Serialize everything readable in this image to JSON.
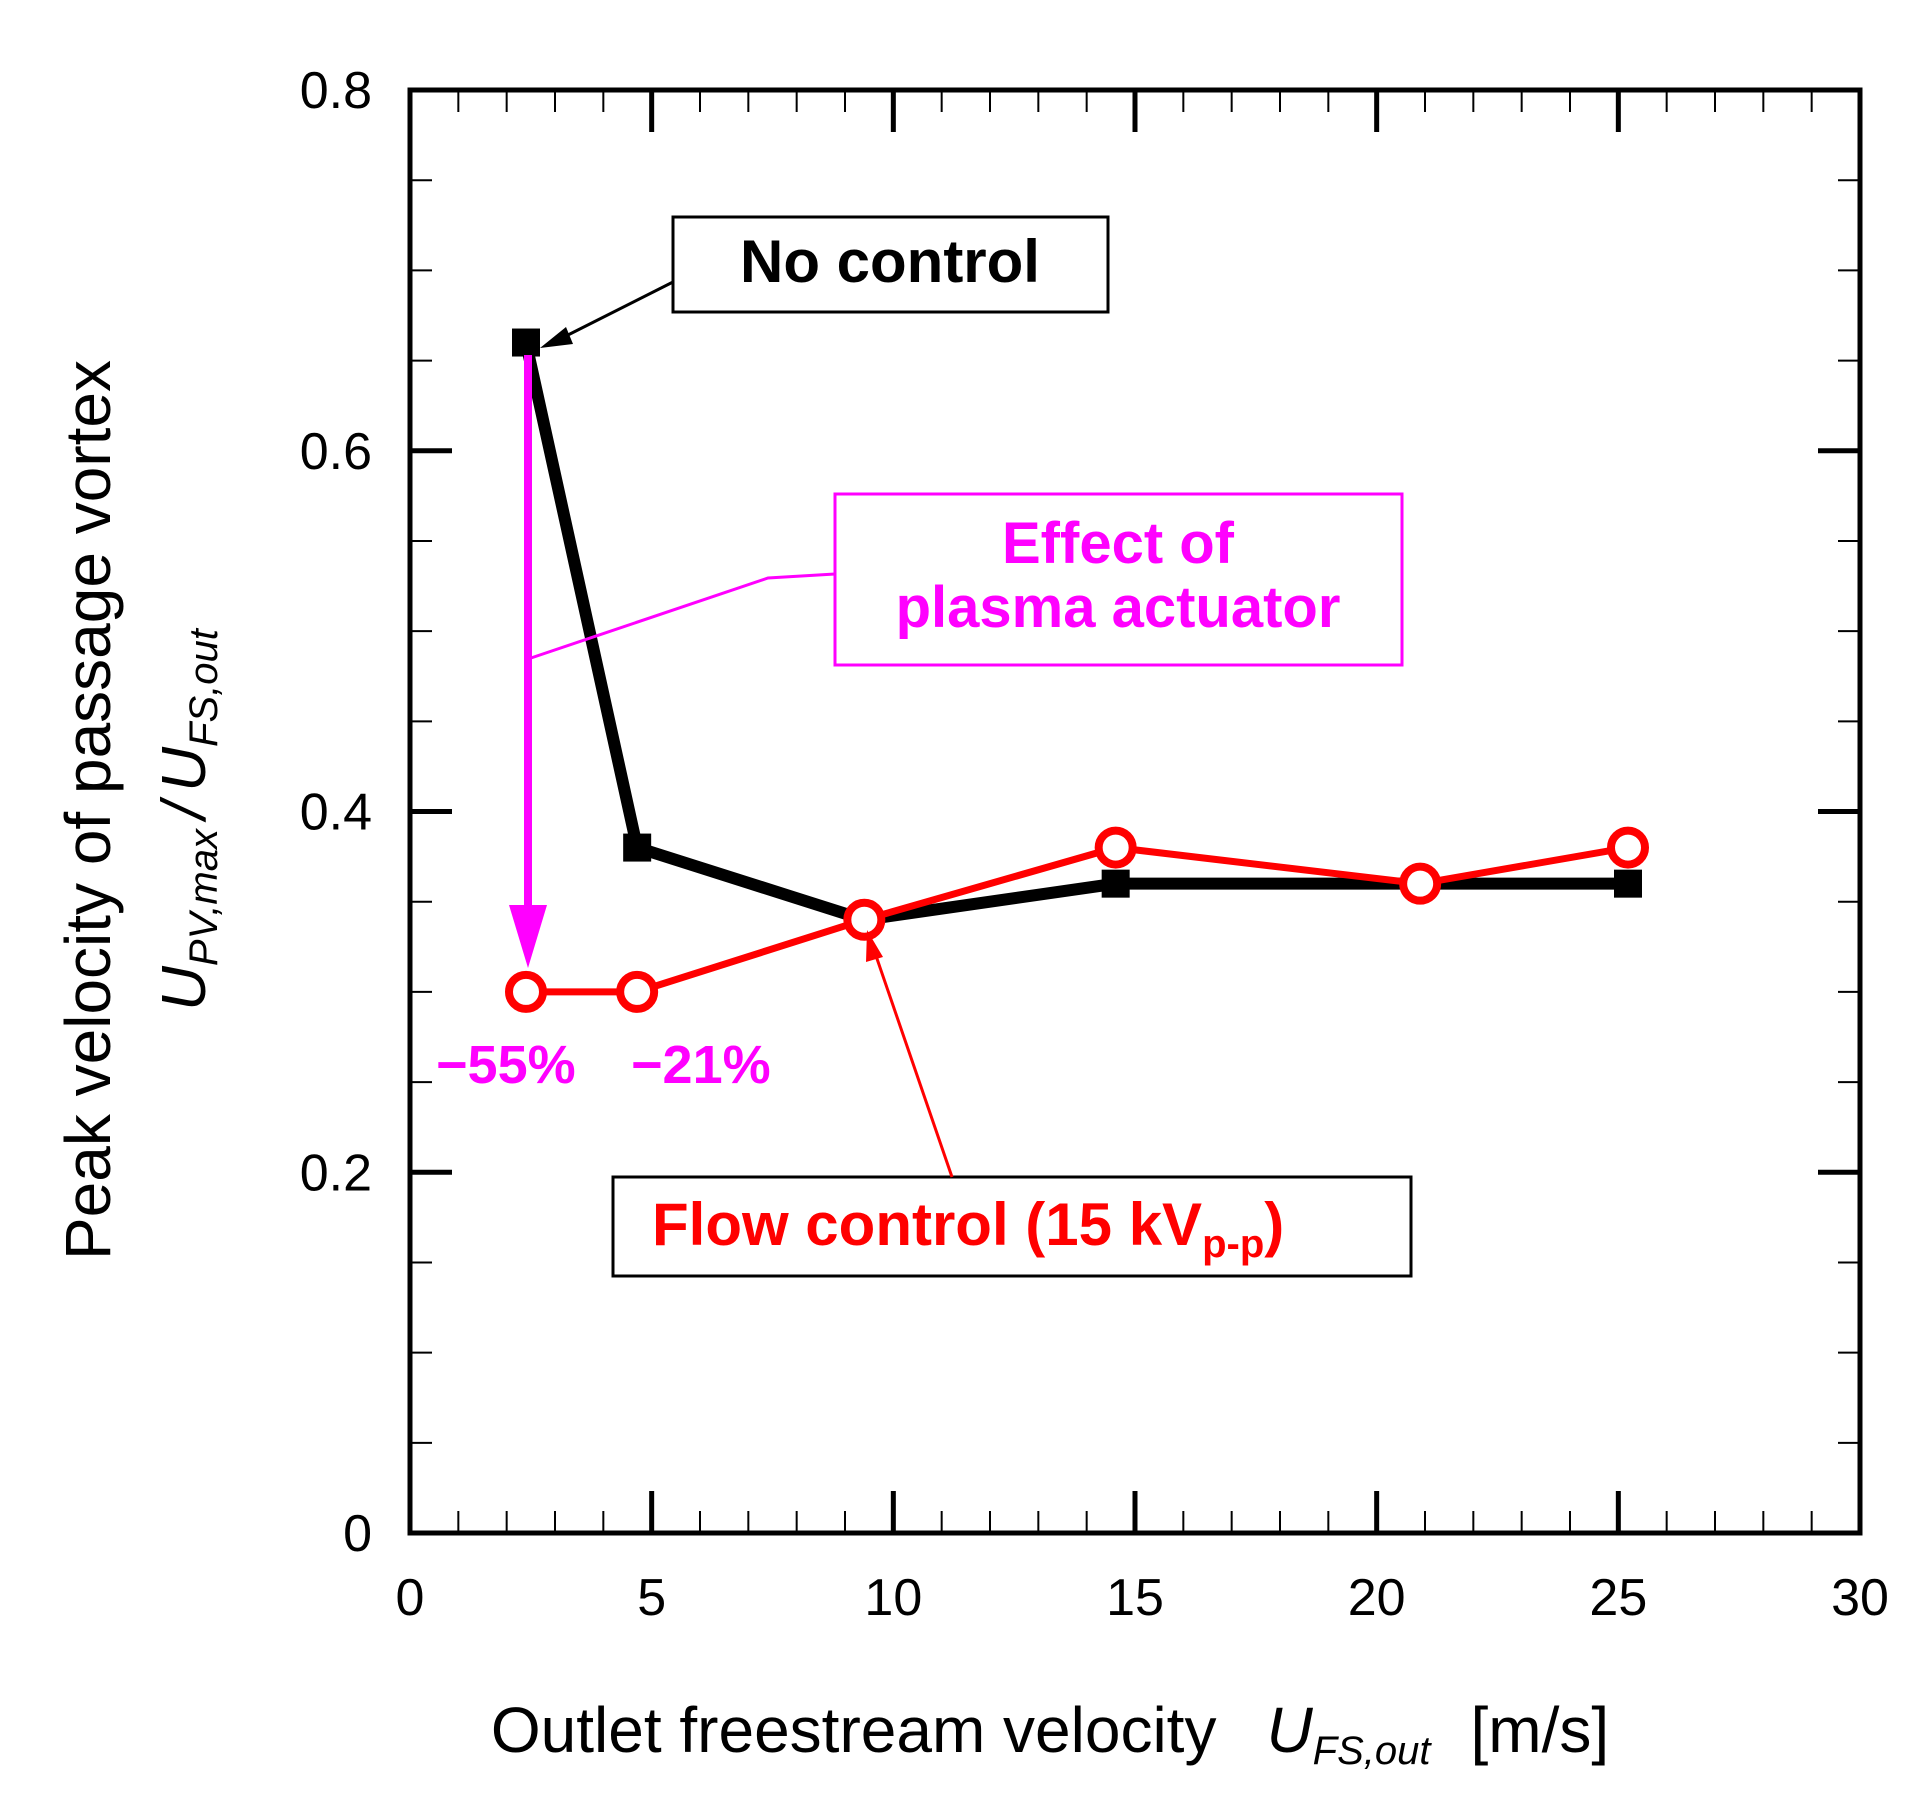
{
  "chart_data": {
    "type": "line",
    "xlabel_prefix": "Outlet freestream velocity",
    "xlabel_var": "U",
    "xlabel_sub": "FS,out",
    "xlabel_unit": "[m/s]",
    "ylabel_line1": "Peak velocity of passage vortex",
    "ylabel_var1": "U",
    "ylabel_sub1": "PV,max",
    "ylabel_slash": "/",
    "ylabel_var2": "U",
    "ylabel_sub2": "FS,out",
    "xlim": [
      0,
      30
    ],
    "ylim": [
      0,
      0.8
    ],
    "x_ticks": [
      0,
      5,
      10,
      15,
      20,
      25,
      30
    ],
    "x_tick_labels": [
      "0",
      "5",
      "10",
      "15",
      "20",
      "25",
      "30"
    ],
    "y_ticks": [
      0,
      0.2,
      0.4,
      0.6,
      0.8
    ],
    "y_tick_labels": [
      "0",
      "0.2",
      "0.4",
      "0.6",
      "0.8"
    ],
    "series": [
      {
        "name": "No control",
        "marker": "square",
        "color": "#000000",
        "x": [
          2.4,
          4.7,
          9.4,
          14.6,
          25.2
        ],
        "y": [
          0.66,
          0.38,
          0.34,
          0.36,
          0.36
        ]
      },
      {
        "name": "Flow control (15 kVp-p)",
        "marker": "open-circle",
        "color": "#ff0000",
        "x": [
          2.4,
          4.7,
          9.4,
          14.6,
          20.9,
          25.2
        ],
        "y": [
          0.3,
          0.3,
          0.34,
          0.38,
          0.36,
          0.38
        ]
      }
    ],
    "annotations": {
      "no_control_label": "No control",
      "flow_control_main": "Flow control (15 kV",
      "flow_control_sub": "p-p",
      "flow_control_close": ")",
      "effect_line1": "Effect of",
      "effect_line2": "plasma actuator",
      "pct_a": "−55%",
      "pct_b": "−21%"
    },
    "colors": {
      "no_control": "#000000",
      "flow_control": "#ff0000",
      "effect": "#ff00ff"
    }
  }
}
